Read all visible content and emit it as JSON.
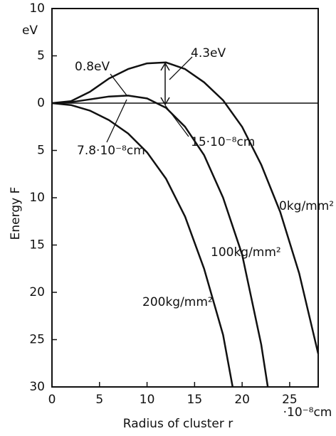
{
  "chart_data": {
    "type": "line",
    "y_unit": "eV",
    "ylabel": "Energy  F",
    "xlabel": "Radius of cluster  r",
    "x_unit": "·10⁻⁸cm",
    "xlim": [
      0,
      28
    ],
    "ylim": [
      -30,
      10
    ],
    "xticks": [
      0,
      5,
      10,
      15,
      20,
      25
    ],
    "yticks": [
      10,
      5,
      0,
      {
        "value": -5,
        "label": "5"
      },
      {
        "value": -10,
        "label": "10"
      },
      {
        "value": -15,
        "label": "15"
      },
      {
        "value": -20,
        "label": "20"
      },
      {
        "value": -25,
        "label": "25"
      },
      {
        "value": -30,
        "label": "30"
      }
    ],
    "series": [
      {
        "name": "0kg/mm²",
        "color": "#111111",
        "x": [
          0,
          2,
          4,
          6,
          8,
          10,
          12,
          14,
          16,
          18,
          20,
          22,
          24,
          26,
          28
        ],
        "values": [
          0,
          0.2,
          1.2,
          2.6,
          3.6,
          4.2,
          4.3,
          3.6,
          2.2,
          0.3,
          -2.5,
          -6.5,
          -11.5,
          -18,
          -26.5
        ]
      },
      {
        "name": "100kg/mm²",
        "color": "#111111",
        "x": [
          0,
          2,
          4,
          6,
          8,
          10,
          12,
          14,
          16,
          18,
          20,
          22,
          22.7
        ],
        "values": [
          0,
          0.1,
          0.4,
          0.7,
          0.8,
          0.5,
          -0.5,
          -2.5,
          -5.5,
          -10,
          -16,
          -25.5,
          -30
        ]
      },
      {
        "name": "200kg/mm²",
        "color": "#111111",
        "x": [
          0,
          2,
          4,
          6,
          8,
          10,
          12,
          14,
          16,
          18,
          19
        ],
        "values": [
          0,
          -0.2,
          -0.8,
          -1.8,
          -3.2,
          -5.2,
          -8,
          -12,
          -17.5,
          -24.5,
          -30
        ]
      }
    ],
    "annotations": [
      "0.8eV",
      "4.3eV",
      "7.8·10⁻⁸cm",
      "15·10⁻⁸cm"
    ]
  }
}
